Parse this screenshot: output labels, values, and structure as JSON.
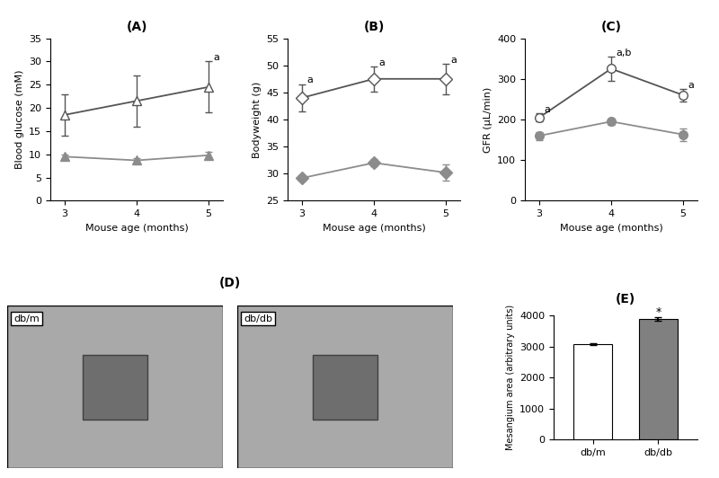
{
  "chart_data": [
    {
      "type": "line",
      "title": "(A)",
      "x_label": "Mouse age (months)",
      "y_label": "Blood glucose (mM)",
      "x": [
        3,
        4,
        5
      ],
      "xlim": [
        2.8,
        5.2
      ],
      "xticks": [
        3,
        4,
        5
      ],
      "ylim": [
        0,
        35
      ],
      "yticks": [
        0,
        5,
        10,
        15,
        20,
        25,
        30,
        35
      ],
      "series": [
        {
          "color": "#555555",
          "marker": "triangle_open",
          "values": [
            18.5,
            21.5,
            24.5
          ],
          "errors": [
            4.5,
            5.5,
            5.5
          ],
          "annotations": [
            null,
            null,
            "a"
          ]
        },
        {
          "color": "#8c8c8c",
          "marker": "triangle",
          "values": [
            9.5,
            8.7,
            9.8
          ],
          "errors": [
            0.5,
            0.5,
            0.7
          ]
        }
      ]
    },
    {
      "type": "line",
      "title": "(B)",
      "x_label": "Mouse age (months)",
      "y_label": "Bodyweight (g)",
      "x": [
        3,
        4,
        5
      ],
      "xlim": [
        2.8,
        5.2
      ],
      "xticks": [
        3,
        4,
        5
      ],
      "ylim": [
        25,
        55
      ],
      "yticks": [
        25,
        30,
        35,
        40,
        45,
        50,
        55
      ],
      "series": [
        {
          "color": "#555555",
          "marker": "diamond_open",
          "values": [
            44,
            47.5,
            47.5
          ],
          "errors": [
            2.5,
            2.3,
            2.8
          ],
          "annotations": [
            "a",
            "a",
            "a"
          ]
        },
        {
          "color": "#8c8c8c",
          "marker": "diamond",
          "values": [
            29.2,
            32,
            30.2
          ],
          "errors": [
            0.5,
            0.7,
            1.5
          ]
        }
      ]
    },
    {
      "type": "line",
      "title": "(C)",
      "x_label": "Mouse age (months)",
      "y_label": "GFR (µL/min)",
      "x": [
        3,
        4,
        5
      ],
      "xlim": [
        2.8,
        5.2
      ],
      "xticks": [
        3,
        4,
        5
      ],
      "ylim": [
        0,
        400
      ],
      "yticks": [
        0,
        100,
        200,
        300,
        400
      ],
      "series": [
        {
          "color": "#555555",
          "marker": "circle_open",
          "values": [
            205,
            325,
            260
          ],
          "errors": [
            10,
            30,
            15
          ],
          "annotations": [
            "a",
            "a,b",
            "a"
          ]
        },
        {
          "color": "#8c8c8c",
          "marker": "circle",
          "values": [
            160,
            195,
            163
          ],
          "errors": [
            10,
            8,
            15
          ]
        }
      ]
    },
    {
      "type": "image",
      "title": "(D)",
      "panels": [
        "db/m",
        "db/db"
      ]
    },
    {
      "type": "bar",
      "title": "(E)",
      "y_label": "Mesangium area (arbitrary units)",
      "categories": [
        "db/m",
        "db/db"
      ],
      "values": [
        3080,
        3900
      ],
      "errors": [
        30,
        60
      ],
      "colors": [
        "#ffffff",
        "#808080"
      ],
      "annotations": [
        null,
        "*"
      ],
      "ylim": [
        0,
        4000
      ],
      "yticks": [
        0,
        1000,
        2000,
        3000,
        4000
      ]
    }
  ]
}
